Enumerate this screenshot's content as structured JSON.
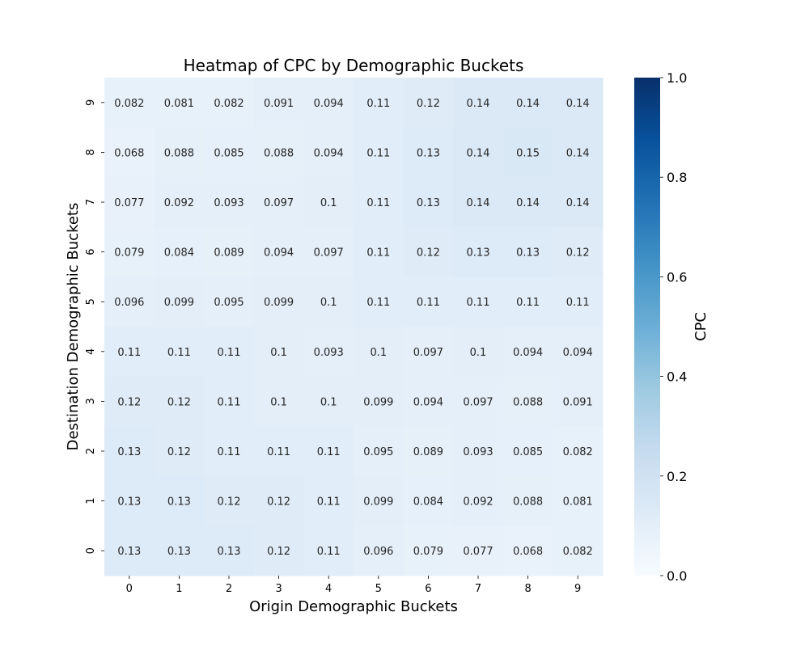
{
  "chart_data": {
    "type": "heatmap",
    "title": "Heatmap of CPC by Demographic Buckets",
    "xlabel": "Origin Demographic Buckets",
    "ylabel": "Destination Demographic Buckets",
    "x_categories": [
      "0",
      "1",
      "2",
      "3",
      "4",
      "5",
      "6",
      "7",
      "8",
      "9"
    ],
    "y_categories": [
      "9",
      "8",
      "7",
      "6",
      "5",
      "4",
      "3",
      "2",
      "1",
      "0"
    ],
    "cells": [
      [
        "0.082",
        "0.081",
        "0.082",
        "0.091",
        "0.094",
        "0.11",
        "0.12",
        "0.14",
        "0.14",
        "0.14"
      ],
      [
        "0.068",
        "0.088",
        "0.085",
        "0.088",
        "0.094",
        "0.11",
        "0.13",
        "0.14",
        "0.15",
        "0.14"
      ],
      [
        "0.077",
        "0.092",
        "0.093",
        "0.097",
        "0.1",
        "0.11",
        "0.13",
        "0.14",
        "0.14",
        "0.14"
      ],
      [
        "0.079",
        "0.084",
        "0.089",
        "0.094",
        "0.097",
        "0.11",
        "0.12",
        "0.13",
        "0.13",
        "0.12"
      ],
      [
        "0.096",
        "0.099",
        "0.095",
        "0.099",
        "0.1",
        "0.11",
        "0.11",
        "0.11",
        "0.11",
        "0.11"
      ],
      [
        "0.11",
        "0.11",
        "0.11",
        "0.1",
        "0.093",
        "0.1",
        "0.097",
        "0.1",
        "0.094",
        "0.094"
      ],
      [
        "0.12",
        "0.12",
        "0.11",
        "0.1",
        "0.1",
        "0.099",
        "0.094",
        "0.097",
        "0.088",
        "0.091"
      ],
      [
        "0.13",
        "0.12",
        "0.11",
        "0.11",
        "0.11",
        "0.095",
        "0.089",
        "0.093",
        "0.085",
        "0.082"
      ],
      [
        "0.13",
        "0.13",
        "0.12",
        "0.12",
        "0.11",
        "0.099",
        "0.084",
        "0.092",
        "0.088",
        "0.081"
      ],
      [
        "0.13",
        "0.13",
        "0.13",
        "0.12",
        "0.11",
        "0.096",
        "0.079",
        "0.077",
        "0.068",
        "0.082"
      ]
    ],
    "colorbar": {
      "label": "CPC",
      "range": [
        0,
        1
      ],
      "ticks": [
        "0.0",
        "0.2",
        "0.4",
        "0.6",
        "0.8",
        "1.0"
      ],
      "colormap": "Blues"
    }
  }
}
